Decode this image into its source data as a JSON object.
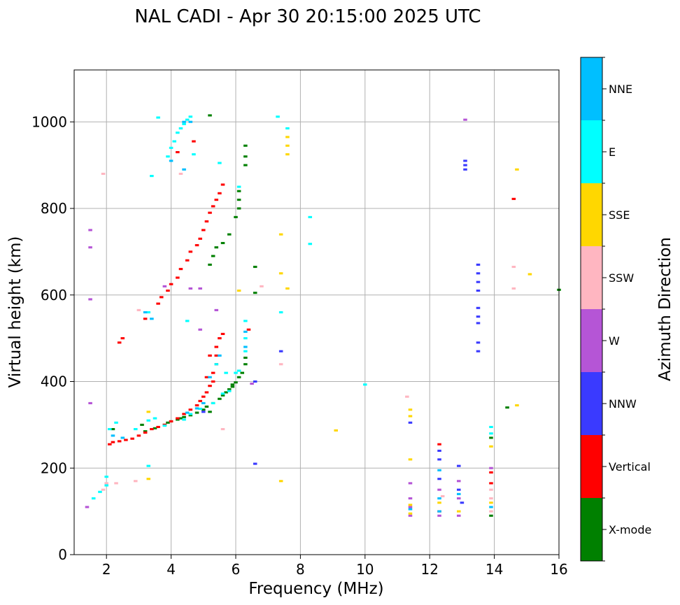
{
  "chart_data": {
    "type": "scatter",
    "title": "NAL CADI - Apr 30 20:15:00 2025 UTC",
    "xlabel": "Frequency (MHz)",
    "ylabel": "Virtual height (km)",
    "xlim": [
      1,
      16
    ],
    "ylim": [
      0,
      1120
    ],
    "xticks": [
      2,
      4,
      6,
      8,
      10,
      12,
      14,
      16
    ],
    "yticks": [
      0,
      200,
      400,
      600,
      800,
      1000
    ],
    "grid": true,
    "colorbar": {
      "label": "Azimuth Direction",
      "categories": [
        {
          "name": "X-mode",
          "color": "#008000"
        },
        {
          "name": "Vertical",
          "color": "#ff0000"
        },
        {
          "name": "NNW",
          "color": "#3a3aff"
        },
        {
          "name": "W",
          "color": "#b555d6"
        },
        {
          "name": "SSW",
          "color": "#ffb6c1"
        },
        {
          "name": "SSE",
          "color": "#ffd700"
        },
        {
          "name": "E",
          "color": "#00ffff"
        },
        {
          "name": "NNE",
          "color": "#00bfff"
        }
      ]
    },
    "series": [
      {
        "name": "X-mode",
        "points": [
          [
            3.5,
            292
          ],
          [
            3.8,
            300
          ],
          [
            3.9,
            305
          ],
          [
            4.0,
            308
          ],
          [
            4.2,
            312
          ],
          [
            4.4,
            318
          ],
          [
            4.6,
            322
          ],
          [
            4.8,
            328
          ],
          [
            5.0,
            335
          ],
          [
            5.1,
            342
          ],
          [
            5.3,
            350
          ],
          [
            5.5,
            360
          ],
          [
            5.6,
            368
          ],
          [
            5.7,
            375
          ],
          [
            5.8,
            382
          ],
          [
            5.9,
            388
          ],
          [
            6.0,
            398
          ],
          [
            6.1,
            410
          ],
          [
            6.2,
            420
          ],
          [
            6.3,
            440
          ],
          [
            6.3,
            455
          ],
          [
            6.3,
            900
          ],
          [
            6.3,
            920
          ],
          [
            6.3,
            945
          ],
          [
            6.1,
            800
          ],
          [
            6.1,
            820
          ],
          [
            6.1,
            840
          ],
          [
            6.0,
            780
          ],
          [
            5.8,
            740
          ],
          [
            5.6,
            720
          ],
          [
            5.4,
            710
          ],
          [
            5.3,
            690
          ],
          [
            5.2,
            670
          ],
          [
            6.6,
            665
          ],
          [
            6.6,
            605
          ],
          [
            3.1,
            300
          ],
          [
            2.2,
            290
          ],
          [
            13.9,
            90
          ],
          [
            13.9,
            270
          ],
          [
            14.4,
            340
          ],
          [
            16.0,
            612
          ],
          [
            5.2,
            1015
          ],
          [
            3.2,
            285
          ],
          [
            4.3,
            315
          ],
          [
            5.2,
            330
          ],
          [
            5.9,
            393
          ]
        ]
      },
      {
        "name": "Vertical",
        "points": [
          [
            2.1,
            255
          ],
          [
            2.2,
            260
          ],
          [
            2.4,
            262
          ],
          [
            2.6,
            265
          ],
          [
            2.8,
            268
          ],
          [
            3.0,
            275
          ],
          [
            3.2,
            282
          ],
          [
            3.4,
            290
          ],
          [
            3.6,
            295
          ],
          [
            3.8,
            300
          ],
          [
            4.0,
            308
          ],
          [
            4.2,
            315
          ],
          [
            4.4,
            325
          ],
          [
            4.6,
            335
          ],
          [
            4.8,
            345
          ],
          [
            4.9,
            355
          ],
          [
            5.0,
            365
          ],
          [
            5.1,
            375
          ],
          [
            5.2,
            390
          ],
          [
            5.3,
            400
          ],
          [
            5.3,
            420
          ],
          [
            5.4,
            440
          ],
          [
            5.4,
            460
          ],
          [
            5.4,
            480
          ],
          [
            5.5,
            500
          ],
          [
            5.6,
            510
          ],
          [
            3.2,
            545
          ],
          [
            3.6,
            580
          ],
          [
            3.7,
            595
          ],
          [
            3.9,
            610
          ],
          [
            4.0,
            625
          ],
          [
            4.2,
            640
          ],
          [
            4.3,
            660
          ],
          [
            4.5,
            680
          ],
          [
            4.6,
            700
          ],
          [
            4.8,
            715
          ],
          [
            4.9,
            730
          ],
          [
            5.0,
            750
          ],
          [
            5.1,
            770
          ],
          [
            5.2,
            790
          ],
          [
            5.3,
            805
          ],
          [
            5.4,
            820
          ],
          [
            5.5,
            835
          ],
          [
            5.6,
            855
          ],
          [
            4.2,
            930
          ],
          [
            4.7,
            955
          ],
          [
            2.4,
            490
          ],
          [
            2.5,
            500
          ],
          [
            6.4,
            520
          ],
          [
            12.3,
            100
          ],
          [
            12.3,
            255
          ],
          [
            13.9,
            165
          ],
          [
            13.9,
            190
          ],
          [
            14.6,
            822
          ],
          [
            5.2,
            460
          ],
          [
            5.1,
            410
          ]
        ]
      },
      {
        "name": "NNW",
        "points": [
          [
            13.5,
            470
          ],
          [
            13.5,
            490
          ],
          [
            13.5,
            535
          ],
          [
            13.5,
            550
          ],
          [
            13.5,
            570
          ],
          [
            13.5,
            610
          ],
          [
            13.5,
            630
          ],
          [
            13.5,
            650
          ],
          [
            13.5,
            670
          ],
          [
            13.1,
            890
          ],
          [
            13.1,
            900
          ],
          [
            13.1,
            910
          ],
          [
            12.3,
            220
          ],
          [
            12.3,
            240
          ],
          [
            12.9,
            205
          ],
          [
            12.9,
            150
          ],
          [
            11.4,
            305
          ],
          [
            6.6,
            210
          ],
          [
            6.6,
            400
          ],
          [
            7.4,
            470
          ],
          [
            5.0,
            330
          ],
          [
            13.0,
            120
          ],
          [
            12.3,
            175
          ]
        ]
      },
      {
        "name": "W",
        "points": [
          [
            11.4,
            90
          ],
          [
            11.4,
            110
          ],
          [
            11.4,
            130
          ],
          [
            11.4,
            165
          ],
          [
            12.3,
            90
          ],
          [
            12.3,
            150
          ],
          [
            12.9,
            90
          ],
          [
            12.9,
            130
          ],
          [
            12.9,
            170
          ],
          [
            13.9,
            200
          ],
          [
            13.1,
            1005
          ],
          [
            1.5,
            350
          ],
          [
            1.5,
            590
          ],
          [
            1.5,
            710
          ],
          [
            1.5,
            750
          ],
          [
            4.6,
            615
          ],
          [
            4.9,
            615
          ],
          [
            5.4,
            565
          ],
          [
            3.8,
            620
          ],
          [
            6.5,
            395
          ],
          [
            1.4,
            110
          ],
          [
            4.9,
            520
          ]
        ]
      },
      {
        "name": "SSW",
        "points": [
          [
            13.9,
            100
          ],
          [
            13.9,
            130
          ],
          [
            13.9,
            150
          ],
          [
            14.6,
            615
          ],
          [
            14.6,
            665
          ],
          [
            11.3,
            365
          ],
          [
            1.9,
            150
          ],
          [
            2.0,
            165
          ],
          [
            2.3,
            165
          ],
          [
            5.6,
            290
          ],
          [
            6.8,
            620
          ],
          [
            7.4,
            440
          ],
          [
            4.3,
            880
          ],
          [
            2.9,
            170
          ],
          [
            3.0,
            565
          ],
          [
            1.9,
            880
          ],
          [
            12.4,
            135
          ]
        ]
      },
      {
        "name": "SSE",
        "points": [
          [
            11.4,
            95
          ],
          [
            11.4,
            115
          ],
          [
            11.4,
            220
          ],
          [
            11.4,
            320
          ],
          [
            11.4,
            335
          ],
          [
            12.3,
            120
          ],
          [
            12.9,
            100
          ],
          [
            13.9,
            120
          ],
          [
            13.9,
            250
          ],
          [
            14.7,
            345
          ],
          [
            14.7,
            890
          ],
          [
            15.1,
            648
          ],
          [
            7.6,
            925
          ],
          [
            7.6,
            945
          ],
          [
            7.6,
            965
          ],
          [
            3.3,
            175
          ],
          [
            3.3,
            330
          ],
          [
            7.4,
            170
          ],
          [
            7.4,
            650
          ],
          [
            7.4,
            740
          ],
          [
            9.1,
            287
          ],
          [
            7.6,
            615
          ],
          [
            6.1,
            610
          ]
        ]
      },
      {
        "name": "E",
        "points": [
          [
            1.6,
            130
          ],
          [
            1.8,
            145
          ],
          [
            2.0,
            160
          ],
          [
            2.0,
            180
          ],
          [
            2.1,
            290
          ],
          [
            2.3,
            305
          ],
          [
            2.9,
            290
          ],
          [
            3.3,
            310
          ],
          [
            3.5,
            315
          ],
          [
            3.8,
            298
          ],
          [
            4.4,
            312
          ],
          [
            4.6,
            325
          ],
          [
            4.9,
            337
          ],
          [
            5.3,
            350
          ],
          [
            5.6,
            372
          ],
          [
            5.8,
            378
          ],
          [
            6.0,
            420
          ],
          [
            6.3,
            470
          ],
          [
            6.3,
            500
          ],
          [
            6.3,
            540
          ],
          [
            6.1,
            425
          ],
          [
            6.1,
            850
          ],
          [
            3.9,
            920
          ],
          [
            4.0,
            940
          ],
          [
            4.1,
            955
          ],
          [
            4.2,
            975
          ],
          [
            4.3,
            985
          ],
          [
            4.4,
            995
          ],
          [
            4.5,
            1005
          ],
          [
            4.6,
            1012
          ],
          [
            4.7,
            925
          ],
          [
            5.5,
            905
          ],
          [
            8.3,
            780
          ],
          [
            8.3,
            718
          ],
          [
            7.4,
            560
          ],
          [
            7.6,
            985
          ],
          [
            13.9,
            280
          ],
          [
            13.9,
            295
          ],
          [
            3.3,
            205
          ],
          [
            3.3,
            560
          ],
          [
            3.6,
            1010
          ],
          [
            4.5,
            540
          ],
          [
            5.7,
            420
          ],
          [
            5.4,
            440
          ],
          [
            3.4,
            875
          ],
          [
            7.3,
            1012
          ],
          [
            10.0,
            393
          ]
        ]
      },
      {
        "name": "NNE",
        "points": [
          [
            12.3,
            100
          ],
          [
            12.3,
            130
          ],
          [
            12.3,
            195
          ],
          [
            12.9,
            140
          ],
          [
            13.9,
            110
          ],
          [
            11.4,
            105
          ],
          [
            6.3,
            480
          ],
          [
            6.3,
            515
          ],
          [
            5.5,
            460
          ],
          [
            5.2,
            410
          ],
          [
            5.0,
            350
          ],
          [
            4.8,
            338
          ],
          [
            4.5,
            328
          ],
          [
            2.5,
            270
          ],
          [
            2.2,
            275
          ],
          [
            3.2,
            560
          ],
          [
            3.4,
            545
          ],
          [
            4.4,
            1000
          ],
          [
            4.6,
            1000
          ],
          [
            4.4,
            890
          ],
          [
            4.0,
            910
          ]
        ]
      }
    ]
  }
}
